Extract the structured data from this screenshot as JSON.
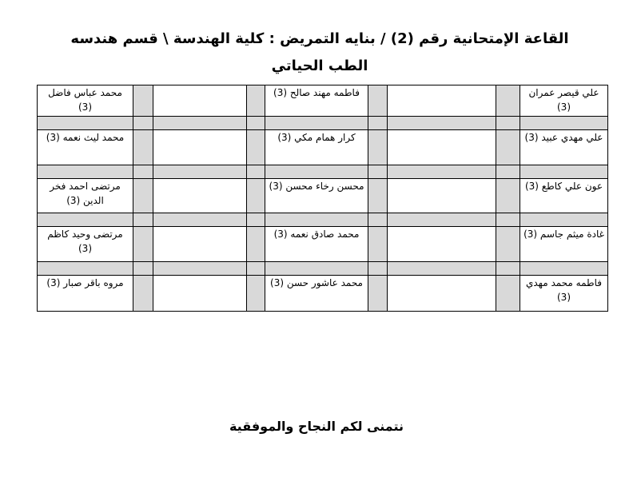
{
  "title_line1": "القاعة الإمتحانية رقم (2) / بنايه التمريض : كلية الهندسة \\ قسم هندسه",
  "title_line2": "الطب الحياتي",
  "rows": [
    {
      "right": "علي قيصر عمران (3)",
      "middle": "فاطمه مهند صالح (3)",
      "left": "محمد عباس فاضل (3)"
    },
    {
      "right": "علي مهدي عبيد (3)",
      "middle": "كرار همام مكي (3)",
      "left": "محمد ليث نعمه (3)"
    },
    {
      "right": "عون علي كاطع (3)",
      "middle": "محسن رخاء محسن (3)",
      "left": "مرتضى احمد فخر الدين (3)"
    },
    {
      "right": "غادة ميثم جاسم (3)",
      "middle": "محمد صادق نعمه (3)",
      "left": "مرتضى وحيد كاظم (3)"
    },
    {
      "right": "فاطمه محمد مهدي (3)",
      "middle": "محمد عاشور حسن (3)",
      "left": "مروه باقر صبار (3)"
    }
  ],
  "footer": "نتمنى لكم النجاح والموفقية"
}
